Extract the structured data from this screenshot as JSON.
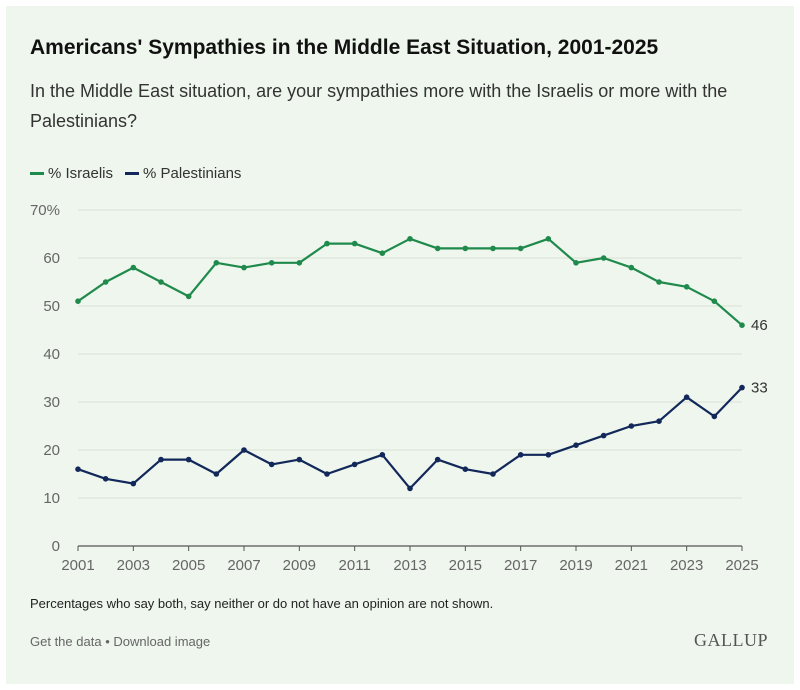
{
  "header": {
    "title": "Americans' Sympathies in the Middle East Situation, 2001-2025",
    "subtitle": "In the Middle East situation, are your sympathies more with the Israelis or more with the Palestinians?"
  },
  "footer": {
    "note": "Percentages who say both, say neither or do not have an opinion are not shown.",
    "get_data_label": "Get the data",
    "separator": "•",
    "download_label": "Download image",
    "brand": "GALLUP"
  },
  "colors": {
    "background": "#eef6ed",
    "israelis": "#1f8a4c",
    "palestinians": "#12275a",
    "grid": "#d9e2d8",
    "axis_text": "#666666"
  },
  "chart_data": {
    "type": "line",
    "x": [
      2001,
      2002,
      2003,
      2004,
      2005,
      2006,
      2007,
      2008,
      2009,
      2010,
      2011,
      2012,
      2013,
      2014,
      2015,
      2016,
      2017,
      2018,
      2019,
      2020,
      2021,
      2022,
      2023,
      2024,
      2025
    ],
    "x_tick_labels": [
      "2001",
      "2003",
      "2005",
      "2007",
      "2009",
      "2011",
      "2013",
      "2015",
      "2017",
      "2019",
      "2021",
      "2023",
      "2025"
    ],
    "y_tick_labels": [
      "0",
      "10",
      "20",
      "30",
      "40",
      "50",
      "60",
      "70%"
    ],
    "ylim": [
      0,
      70
    ],
    "grid": true,
    "legend_position": "top-left",
    "series": [
      {
        "name": "% Israelis",
        "values": [
          51,
          55,
          58,
          55,
          52,
          59,
          58,
          59,
          59,
          63,
          63,
          61,
          64,
          62,
          62,
          62,
          62,
          64,
          59,
          60,
          58,
          55,
          54,
          51,
          46
        ],
        "end_label": "46"
      },
      {
        "name": "% Palestinians",
        "values": [
          16,
          14,
          13,
          18,
          18,
          15,
          20,
          17,
          18,
          15,
          17,
          19,
          12,
          18,
          16,
          15,
          19,
          19,
          21,
          23,
          25,
          26,
          31,
          27,
          33
        ],
        "end_label": "33"
      }
    ]
  }
}
